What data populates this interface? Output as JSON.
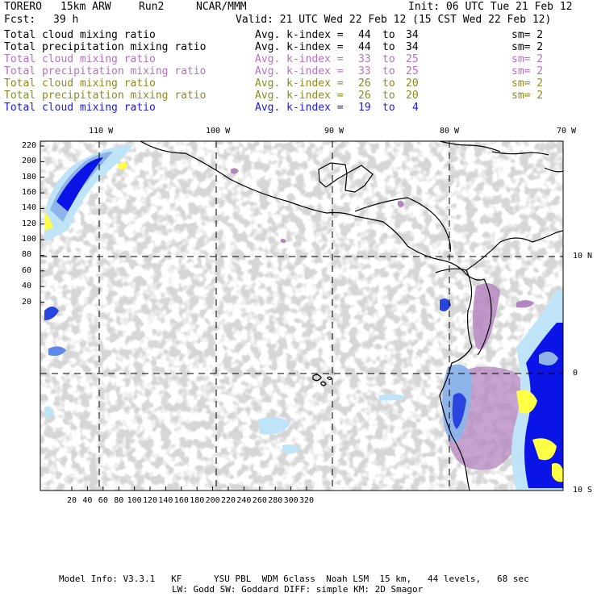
{
  "header": {
    "model": "TORERO",
    "resolution": "15km ARW",
    "run": "Run2",
    "org": "NCAR/MMM",
    "init": "Init: 06 UTC Tue 21 Feb 12",
    "fcst_label": "Fcst:",
    "fcst_value": "39 h",
    "valid": "Valid: 21 UTC Wed 22 Feb 12 (15 CST Wed 22 Feb 12)"
  },
  "legend": [
    {
      "field": "Total cloud mixing ratio",
      "avg": "Avg. k-index =",
      "k_from": "44",
      "to": "to",
      "k_to": "34",
      "sm": "sm= 2",
      "color": "#000000"
    },
    {
      "field": "Total precipitation mixing ratio",
      "avg": "Avg. k-index =",
      "k_from": "44",
      "to": "to",
      "k_to": "34",
      "sm": "sm= 2",
      "color": "#000000"
    },
    {
      "field": "Total cloud mixing ratio",
      "avg": "Avg. k-index =",
      "k_from": "33",
      "to": "to",
      "k_to": "25",
      "sm": "sm= 2",
      "color": "#b86fc4"
    },
    {
      "field": "Total precipitation mixing ratio",
      "avg": "Avg. k-index =",
      "k_from": "33",
      "to": "to",
      "k_to": "25",
      "sm": "sm= 2",
      "color": "#b86fc4"
    },
    {
      "field": "Total cloud mixing ratio",
      "avg": "Avg. k-index =",
      "k_from": "26",
      "to": "to",
      "k_to": "20",
      "sm": "sm= 2",
      "color": "#8c8c20"
    },
    {
      "field": "Total precipitation mixing ratio",
      "avg": "Avg. k-index =",
      "k_from": "26",
      "to": "to",
      "k_to": "20",
      "sm": "sm= 2",
      "color": "#8c8c20"
    },
    {
      "field": "Total cloud mixing ratio",
      "avg": "Avg. k-index =",
      "k_from": "19",
      "to": "to",
      "k_to": "4",
      "sm": "",
      "color": "#1a1ae6"
    }
  ],
  "map": {
    "lon_labels": [
      "110 W",
      "100 W",
      "90 W",
      "80 W",
      "70 W"
    ],
    "lat_labels": [
      "10 N",
      "0",
      "10 S"
    ],
    "y_ticks": [
      "220",
      "200",
      "180",
      "160",
      "140",
      "120",
      "100",
      "80",
      "60",
      "40",
      "20"
    ],
    "x_ticks": [
      "20",
      "40",
      "60",
      "80",
      "100",
      "120",
      "140",
      "160",
      "180",
      "200",
      "220",
      "240",
      "260",
      "280",
      "300",
      "320"
    ],
    "colors": {
      "cloud_gray": "#a8a8a8",
      "light_blue": "#bfe4f7",
      "mid_blue": "#8fb4ea",
      "deep_blue": "#0a14e6",
      "purple": "#b486c0",
      "yellow": "#ffff46",
      "land_line": "#000000"
    }
  },
  "footer": {
    "line1": "Model Info: V3.3.1   KF      YSU PBL  WDM 6class  Noah LSM  15 km,   44 levels,   68 sec",
    "line2": "LW: Godd SW: Goddard DIFF: simple KM: 2D Smagor"
  }
}
